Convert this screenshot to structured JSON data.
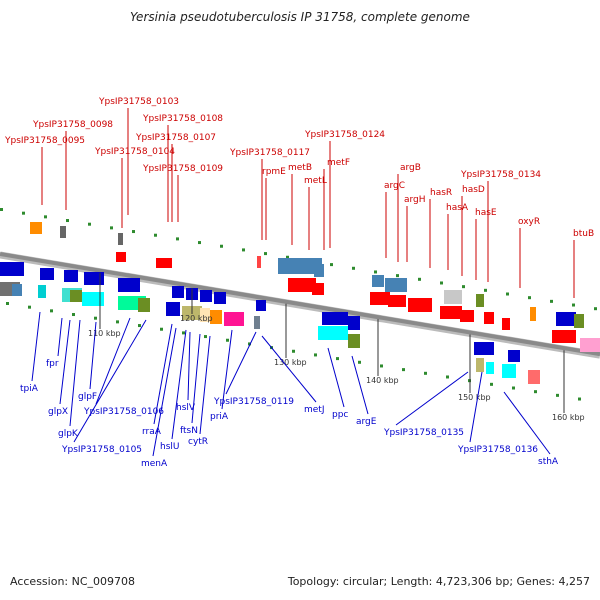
{
  "title": "Yersinia pseudotuberculosis IP 31758, complete genome",
  "footer": {
    "accession": "Accession: NC_009708",
    "summary": "Topology: circular; Length: 4,723,306 bp; Genes: 4,257"
  },
  "colors": {
    "top_label": "#cc0000",
    "bottom_label": "#0000cc",
    "backbone": "#8a8a8a",
    "tick_green": "#2e8b2e"
  },
  "ticks": [
    "110 kbp",
    "120 kbp",
    "130 kbp",
    "140 kbp",
    "150 kbp",
    "160 kbp"
  ],
  "top_labels": [
    "YpsIP31758_0095",
    "YpsIP31758_0098",
    "YpsIP31758_0103",
    "YpsIP31758_0104",
    "YpsIP31758_0108",
    "YpsIP31758_0107",
    "YpsIP31758_0109",
    "YpsIP31758_0117",
    "rpmE",
    "metB",
    "metL",
    "metF",
    "YpsIP31758_0124",
    "argC",
    "argB",
    "argH",
    "hasR",
    "hasA",
    "hasD",
    "hasE",
    "YpsIP31758_0134",
    "oxyR",
    "btuB"
  ],
  "bottom_labels": [
    "tpiA",
    "fpr",
    "glpX",
    "glpK",
    "glpF",
    "YpsIP31758_0106",
    "YpsIP31758_0105",
    "rraA",
    "menA",
    "hslU",
    "hslV",
    "ftsN",
    "cytR",
    "priA",
    "YpsIP31758_0119",
    "metJ",
    "ppc",
    "argE",
    "YpsIP31758_0135",
    "YpsIP31758_0136",
    "sthA"
  ]
}
